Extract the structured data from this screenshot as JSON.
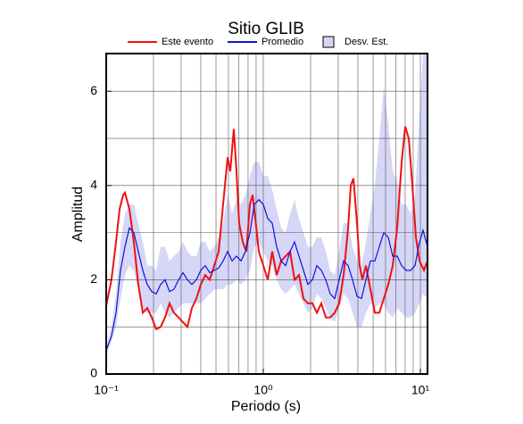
{
  "chart_data": {
    "type": "line",
    "title": "Sitio GLIB",
    "xlabel": "Periodo (s)",
    "ylabel": "Amplitud",
    "xscale": "log",
    "xlim": [
      0.1,
      11.1
    ],
    "ylim": [
      0,
      6.8
    ],
    "xticks": [
      {
        "value": 0.1,
        "label": "10⁻¹"
      },
      {
        "value": 1,
        "label": "10⁰"
      },
      {
        "value": 10,
        "label": "10¹"
      }
    ],
    "x_minor_ticks": [
      0.2,
      0.3,
      0.4,
      0.5,
      0.6,
      0.7,
      0.8,
      0.9,
      2,
      3,
      4,
      5,
      6,
      7,
      8,
      9
    ],
    "yticks": [
      0,
      2,
      4,
      6
    ],
    "y_minor_ticks": [
      1,
      3,
      5
    ],
    "grid": true,
    "legend": "top",
    "series": [
      {
        "name": "Este evento",
        "color": "#ee1111",
        "x": [
          0.1,
          0.108,
          0.1155,
          0.1217,
          0.1282,
          0.1316,
          0.1405,
          0.15,
          0.16,
          0.171,
          0.1825,
          0.195,
          0.208,
          0.222,
          0.237,
          0.253,
          0.27,
          0.289,
          0.308,
          0.329,
          0.351,
          0.375,
          0.4,
          0.427,
          0.456,
          0.487,
          0.52,
          0.555,
          0.593,
          0.616,
          0.649,
          0.675,
          0.702,
          0.74,
          0.78,
          0.822,
          0.855,
          0.889,
          0.937,
          1.0,
          1.068,
          1.14,
          1.217,
          1.299,
          1.387,
          1.481,
          1.581,
          1.688,
          1.802,
          1.923,
          2.054,
          2.193,
          2.341,
          2.499,
          2.668,
          2.848,
          3.041,
          3.246,
          3.466,
          3.605,
          3.749,
          3.95,
          4.108,
          4.273,
          4.502,
          4.806,
          5.131,
          5.478,
          5.848,
          6.245,
          6.667,
          7.117,
          7.599,
          8.007,
          8.436,
          8.888,
          9.367,
          9.87,
          10.54,
          11.1
        ],
        "values": [
          1.45,
          2.0,
          2.8,
          3.5,
          3.8,
          3.85,
          3.5,
          2.8,
          1.9,
          1.3,
          1.4,
          1.2,
          0.95,
          1.0,
          1.2,
          1.5,
          1.3,
          1.2,
          1.1,
          1.0,
          1.4,
          1.6,
          1.9,
          2.1,
          2.0,
          2.3,
          2.6,
          3.6,
          4.6,
          4.3,
          5.2,
          4.3,
          3.2,
          2.8,
          2.6,
          3.6,
          3.8,
          3.3,
          2.6,
          2.3,
          2.0,
          2.6,
          2.1,
          2.4,
          2.5,
          2.6,
          2.0,
          2.1,
          1.6,
          1.5,
          1.5,
          1.3,
          1.5,
          1.2,
          1.2,
          1.3,
          1.5,
          2.1,
          3.1,
          4.0,
          4.15,
          3.2,
          2.3,
          2.0,
          2.3,
          1.8,
          1.3,
          1.3,
          1.6,
          1.9,
          2.3,
          3.1,
          4.5,
          5.25,
          5.0,
          4.0,
          2.9,
          2.4,
          2.2,
          2.4
        ]
      },
      {
        "name": "Promedio",
        "color": "#1111dd",
        "x": [
          0.1,
          0.108,
          0.1155,
          0.1233,
          0.1316,
          0.1405,
          0.15,
          0.16,
          0.171,
          0.1825,
          0.195,
          0.208,
          0.222,
          0.237,
          0.253,
          0.27,
          0.289,
          0.308,
          0.329,
          0.351,
          0.375,
          0.4,
          0.427,
          0.456,
          0.487,
          0.52,
          0.555,
          0.593,
          0.633,
          0.675,
          0.721,
          0.77,
          0.822,
          0.877,
          0.937,
          1.0,
          1.068,
          1.14,
          1.217,
          1.299,
          1.387,
          1.481,
          1.581,
          1.688,
          1.802,
          1.923,
          2.054,
          2.193,
          2.341,
          2.499,
          2.668,
          2.848,
          3.041,
          3.246,
          3.466,
          3.7,
          3.95,
          4.217,
          4.502,
          4.806,
          5.131,
          5.478,
          5.848,
          6.245,
          6.667,
          7.117,
          7.599,
          8.112,
          8.66,
          9.245,
          9.87,
          10.4,
          11.1
        ],
        "values": [
          0.5,
          0.8,
          1.3,
          2.2,
          2.7,
          3.1,
          3.0,
          2.6,
          2.2,
          1.9,
          1.75,
          1.7,
          1.9,
          2.0,
          1.75,
          1.8,
          2.0,
          2.15,
          2.0,
          1.9,
          2.0,
          2.2,
          2.3,
          2.15,
          2.2,
          2.25,
          2.4,
          2.6,
          2.4,
          2.5,
          2.4,
          2.6,
          3.0,
          3.6,
          3.7,
          3.6,
          3.3,
          3.2,
          2.7,
          2.4,
          2.3,
          2.6,
          2.8,
          2.5,
          2.2,
          1.9,
          2.0,
          2.3,
          2.2,
          2.0,
          1.7,
          1.6,
          2.0,
          2.4,
          2.3,
          2.0,
          1.65,
          1.6,
          2.0,
          2.4,
          2.4,
          2.7,
          3.0,
          2.9,
          2.5,
          2.5,
          2.3,
          2.2,
          2.2,
          2.3,
          2.8,
          3.05,
          2.7
        ]
      },
      {
        "name": "Desv. Est.",
        "color": "#d6d6f7",
        "x": [
          0.1,
          0.108,
          0.1155,
          0.1233,
          0.1316,
          0.1405,
          0.15,
          0.16,
          0.171,
          0.1825,
          0.195,
          0.208,
          0.222,
          0.237,
          0.253,
          0.27,
          0.289,
          0.308,
          0.329,
          0.351,
          0.375,
          0.4,
          0.427,
          0.456,
          0.487,
          0.52,
          0.555,
          0.593,
          0.633,
          0.675,
          0.721,
          0.77,
          0.822,
          0.877,
          0.937,
          1.0,
          1.068,
          1.14,
          1.217,
          1.299,
          1.387,
          1.481,
          1.581,
          1.688,
          1.802,
          1.923,
          2.054,
          2.193,
          2.341,
          2.499,
          2.668,
          2.848,
          3.041,
          3.246,
          3.466,
          3.7,
          3.95,
          4.217,
          4.502,
          4.806,
          5.131,
          5.478,
          5.848,
          6.245,
          6.667,
          7.117,
          7.599,
          8.112,
          8.66,
          9.245,
          9.87,
          10.4,
          11.1
        ],
        "upper": [
          0.6,
          1.0,
          1.7,
          2.8,
          3.4,
          3.6,
          3.6,
          3.2,
          2.8,
          2.3,
          2.3,
          2.2,
          2.7,
          2.7,
          2.4,
          2.5,
          2.6,
          2.8,
          2.6,
          2.5,
          2.5,
          2.8,
          2.8,
          2.6,
          2.7,
          2.9,
          3.2,
          3.8,
          3.4,
          3.7,
          3.6,
          3.8,
          4.2,
          4.5,
          4.5,
          4.2,
          4.2,
          3.9,
          3.5,
          3.1,
          3.0,
          3.4,
          3.7,
          3.3,
          3.0,
          2.7,
          2.7,
          2.9,
          2.9,
          2.6,
          2.2,
          2.1,
          2.6,
          3.2,
          3.2,
          2.7,
          2.4,
          2.3,
          2.8,
          3.4,
          4.0,
          5.0,
          6.1,
          5.3,
          4.3,
          4.1,
          3.6,
          3.6,
          3.4,
          3.8,
          5.5,
          6.8,
          6.8
        ],
        "lower": [
          0.4,
          0.7,
          1.0,
          1.6,
          2.1,
          2.3,
          2.2,
          1.8,
          1.4,
          1.3,
          1.3,
          1.3,
          1.5,
          1.3,
          1.2,
          1.3,
          1.4,
          1.5,
          1.5,
          1.5,
          1.5,
          1.5,
          1.6,
          1.7,
          1.8,
          1.8,
          1.8,
          1.9,
          1.9,
          2.0,
          1.9,
          2.0,
          2.2,
          2.7,
          2.8,
          2.6,
          2.4,
          2.3,
          2.0,
          1.8,
          1.7,
          1.8,
          1.9,
          1.7,
          1.5,
          1.3,
          1.4,
          1.7,
          1.6,
          1.4,
          1.2,
          1.1,
          1.4,
          1.7,
          1.6,
          1.3,
          1.0,
          1.0,
          1.3,
          1.5,
          1.4,
          1.5,
          1.5,
          1.3,
          1.2,
          1.4,
          1.3,
          1.2,
          1.2,
          1.3,
          1.5,
          1.7,
          1.6
        ]
      }
    ]
  }
}
